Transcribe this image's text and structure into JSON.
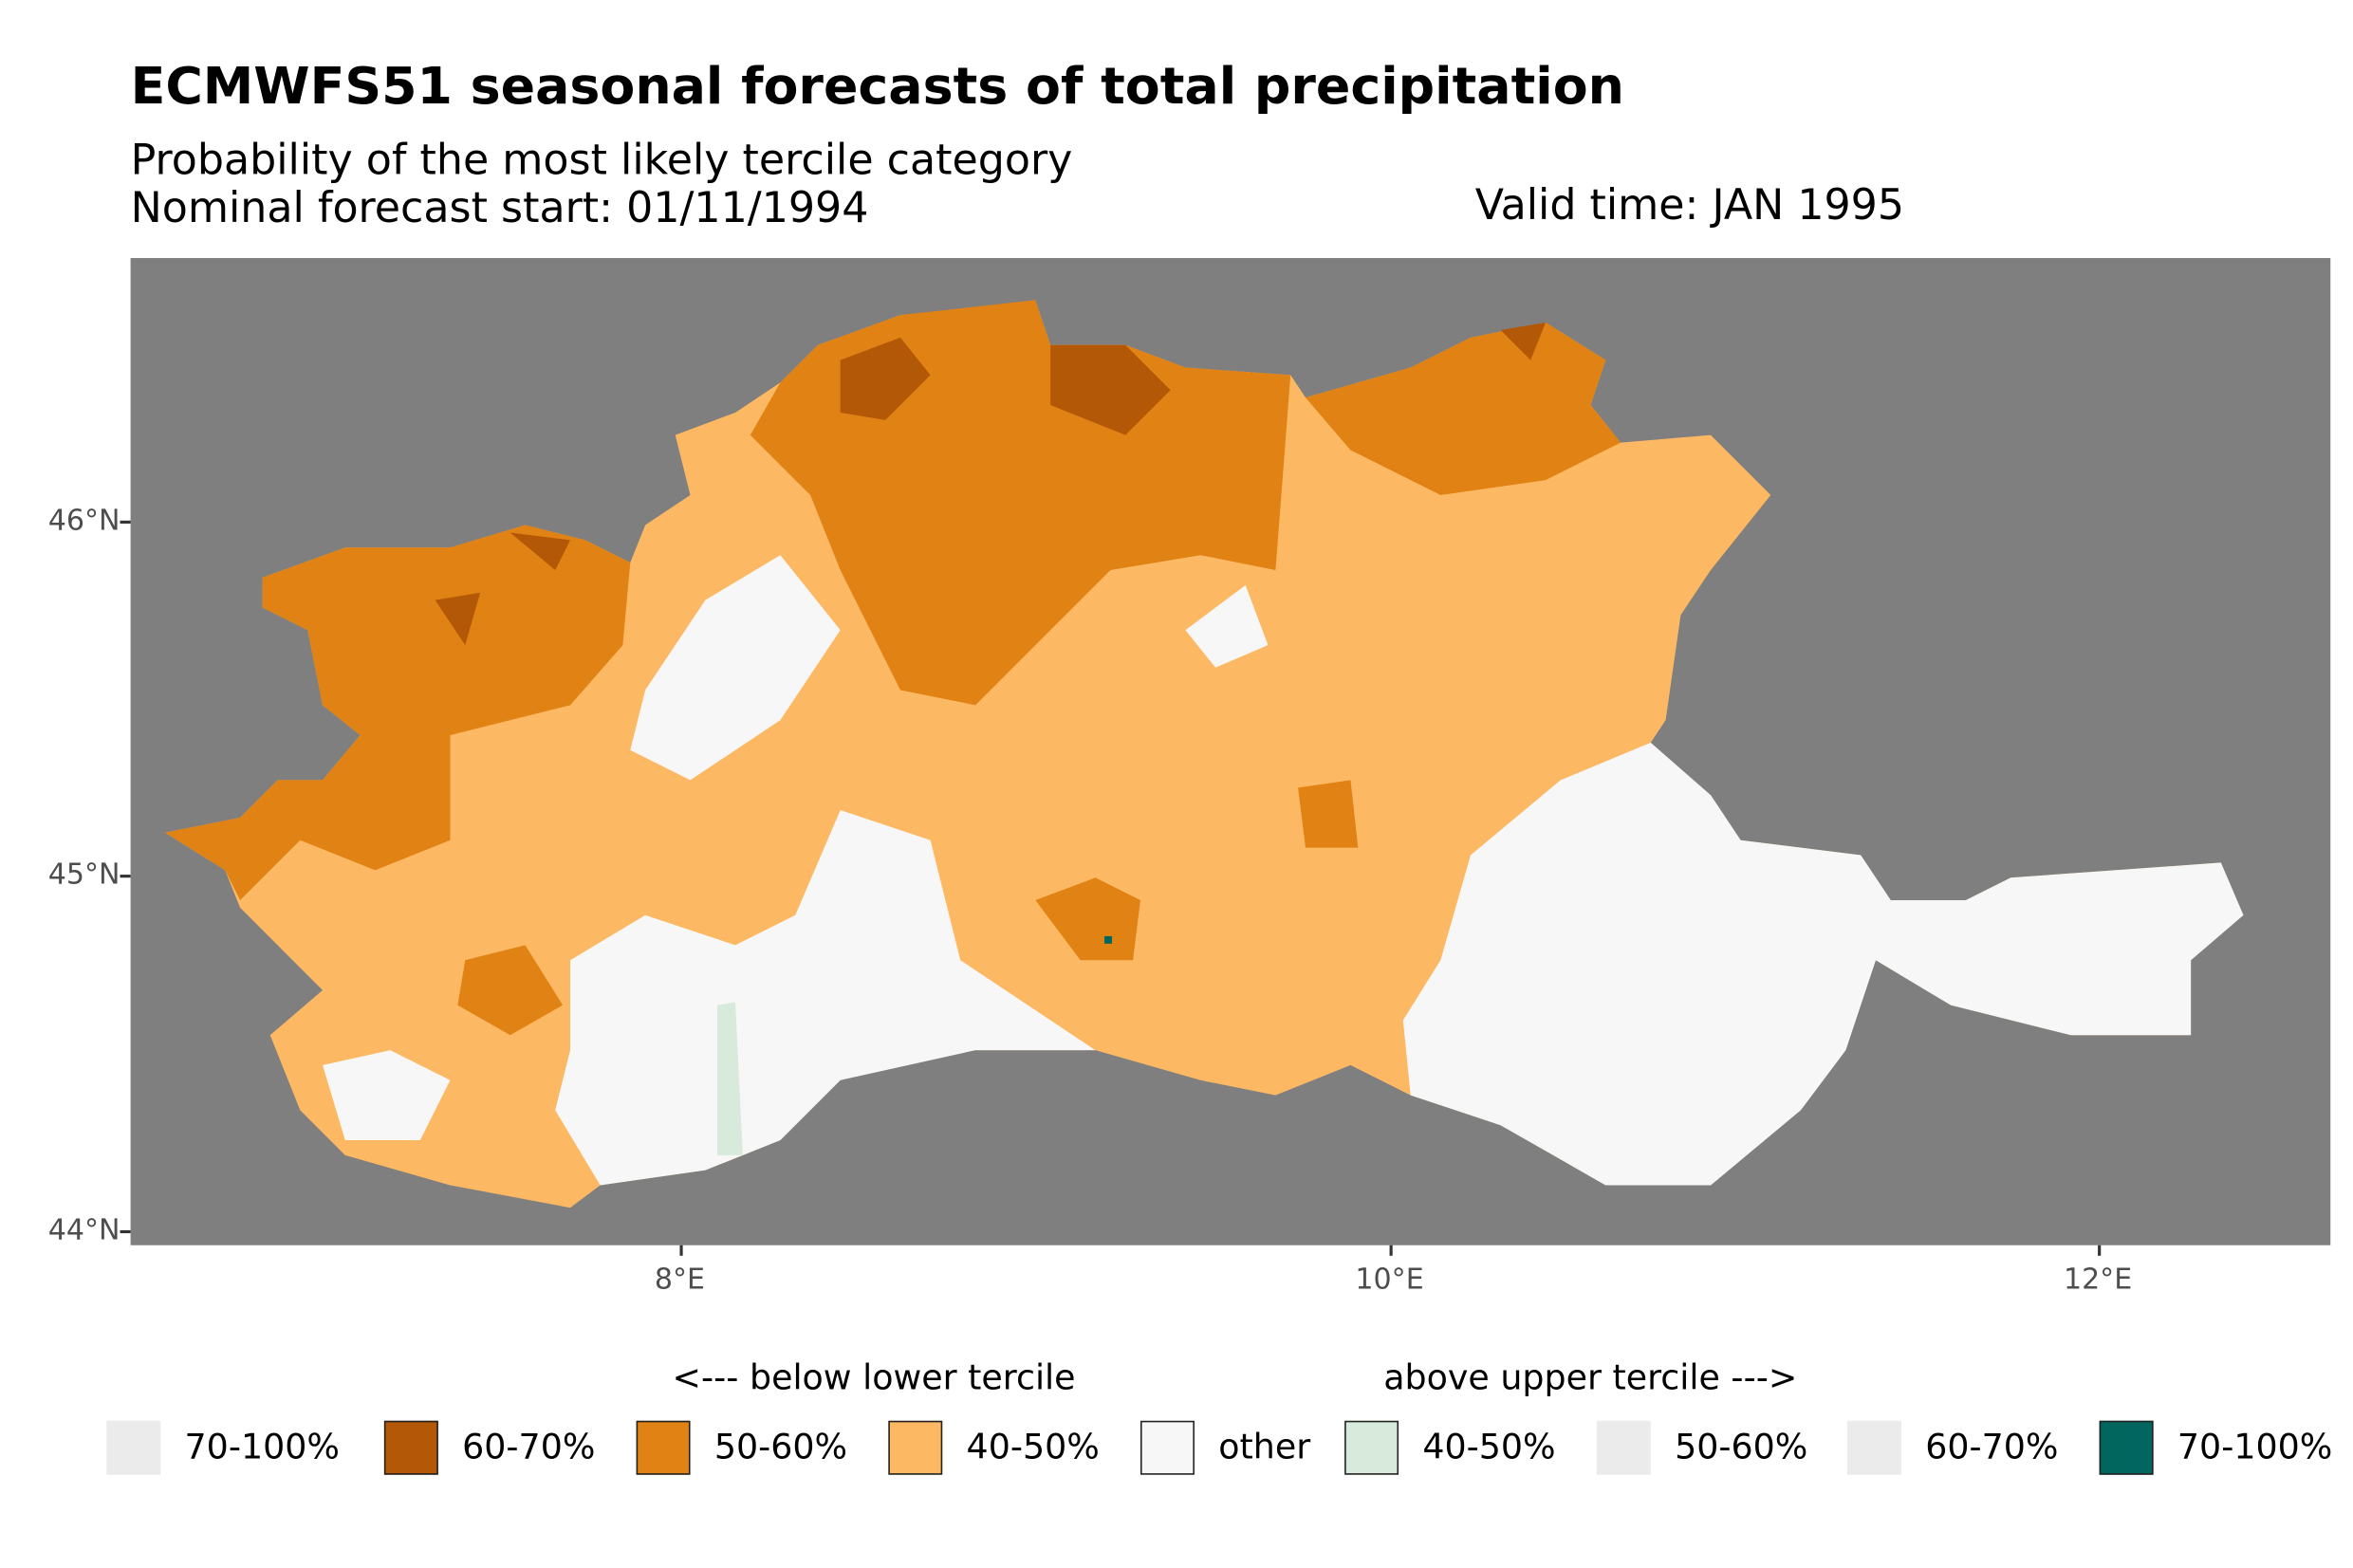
{
  "title": "ECMWFS51 seasonal forecasts of total precipitation",
  "subtitle": "Probability of the most likely tercile category",
  "forecast_start": "Nominal forecast start: 01/11/1994",
  "valid_time": "Valid time: JAN 1995",
  "axes": {
    "y_ticks": [
      "46°N",
      "45°N",
      "44°N"
    ],
    "x_ticks": [
      "8°E",
      "10°E",
      "12°E"
    ]
  },
  "colors": {
    "background": "#7f7f7f",
    "below_70_100": "#ebebeb",
    "below_60_70": "#b35806",
    "below_50_60": "#e08214",
    "below_40_50": "#fdb863",
    "other": "#f7f7f7",
    "above_40_50": "#d8eadb",
    "above_50_60": "#ebebeb",
    "above_60_70": "#ebebeb",
    "above_70_100": "#01665e"
  },
  "legend": {
    "below_title": "<--- below lower tercile",
    "above_title": "above upper tercile --->",
    "items": [
      {
        "label": "70-100%",
        "color": "#ebebeb",
        "border": false
      },
      {
        "label": "60-70%",
        "color": "#b35806",
        "border": true
      },
      {
        "label": "50-60%",
        "color": "#e08214",
        "border": true
      },
      {
        "label": "40-50%",
        "color": "#fdb863",
        "border": true
      },
      {
        "label": "other",
        "color": "#f7f7f7",
        "border": true
      },
      {
        "label": "40-50%",
        "color": "#d8eadb",
        "border": true
      },
      {
        "label": "50-60%",
        "color": "#ebebeb",
        "border": false
      },
      {
        "label": "60-70%",
        "color": "#ebebeb",
        "border": false
      },
      {
        "label": "70-100%",
        "color": "#01665e",
        "border": true
      }
    ]
  }
}
